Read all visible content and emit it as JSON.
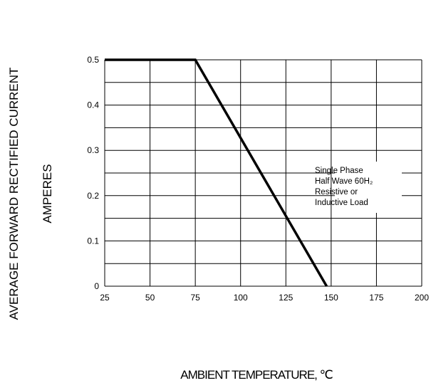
{
  "chart_data": {
    "type": "line",
    "title": "",
    "xlabel": "AMBIENT TEMPERATURE, ℃",
    "ylabel_lines": [
      "AVERAGE FORWARD RECTIFIED CURRENT",
      "AMPERES"
    ],
    "xlim": [
      25,
      200
    ],
    "ylim": [
      0,
      0.5
    ],
    "x_ticks": [
      "25",
      "50",
      "75",
      "100",
      "125",
      "150",
      "175",
      "200"
    ],
    "y_ticks": [
      "0",
      "0.1",
      "0.2",
      "0.3",
      "0.4",
      "0.5"
    ],
    "grid": true,
    "series": [
      {
        "x": [
          25,
          75,
          147.5
        ],
        "y": [
          0.5,
          0.5,
          0
        ]
      }
    ],
    "annotation_lines": [
      "Single Phase",
      "Half Wave 60H₂",
      "Resistive or",
      "Inductive Load"
    ]
  }
}
